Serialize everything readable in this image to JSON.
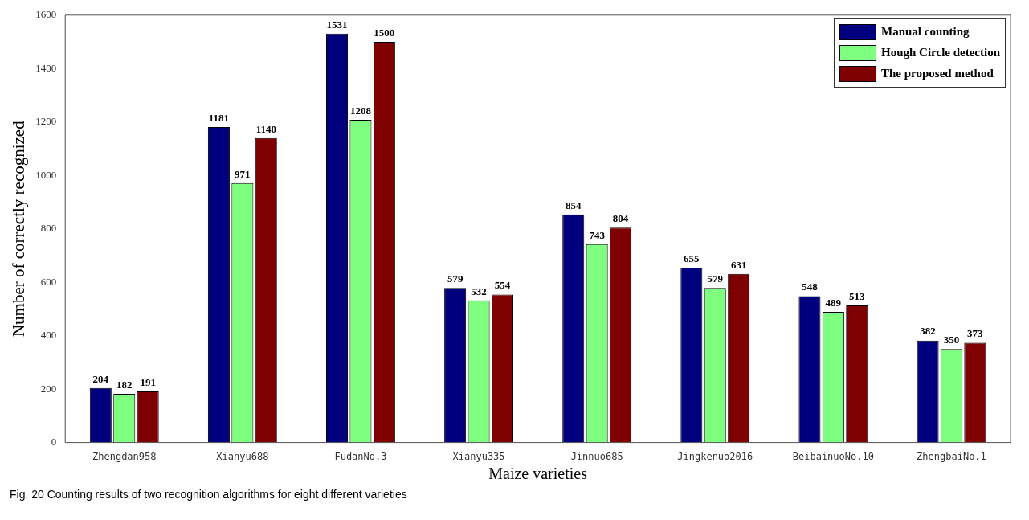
{
  "chart_data": {
    "type": "bar",
    "xlabel": "Maize varieties",
    "ylabel": "Number of correctly recognized",
    "categories": [
      "Zhengdan958",
      "Xianyu688",
      "FudanNo.3",
      "Xianyu335",
      "Jinnuo685",
      "Jingkenuo2016",
      "BeibainuoNo.10",
      "ZhengbaiNo.1"
    ],
    "series": [
      {
        "name": "Manual counting",
        "color": "#00007f",
        "values": [
          204,
          1181,
          1531,
          579,
          854,
          655,
          548,
          382
        ]
      },
      {
        "name": "Hough Circle detection",
        "color": "#7fff7f",
        "values": [
          182,
          971,
          1208,
          532,
          743,
          579,
          489,
          350
        ]
      },
      {
        "name": "The proposed method",
        "color": "#7f0000",
        "values": [
          191,
          1140,
          1500,
          554,
          804,
          631,
          513,
          373
        ]
      }
    ],
    "ylim": [
      0,
      1600
    ],
    "yticks": [
      0,
      200,
      400,
      600,
      800,
      1000,
      1200,
      1400,
      1600
    ],
    "grid": false,
    "legend": "top right",
    "data_labels": true,
    "annotations": [
      "Fig. 20  Counting results of two recognition algorithms for eight different varieties"
    ]
  }
}
